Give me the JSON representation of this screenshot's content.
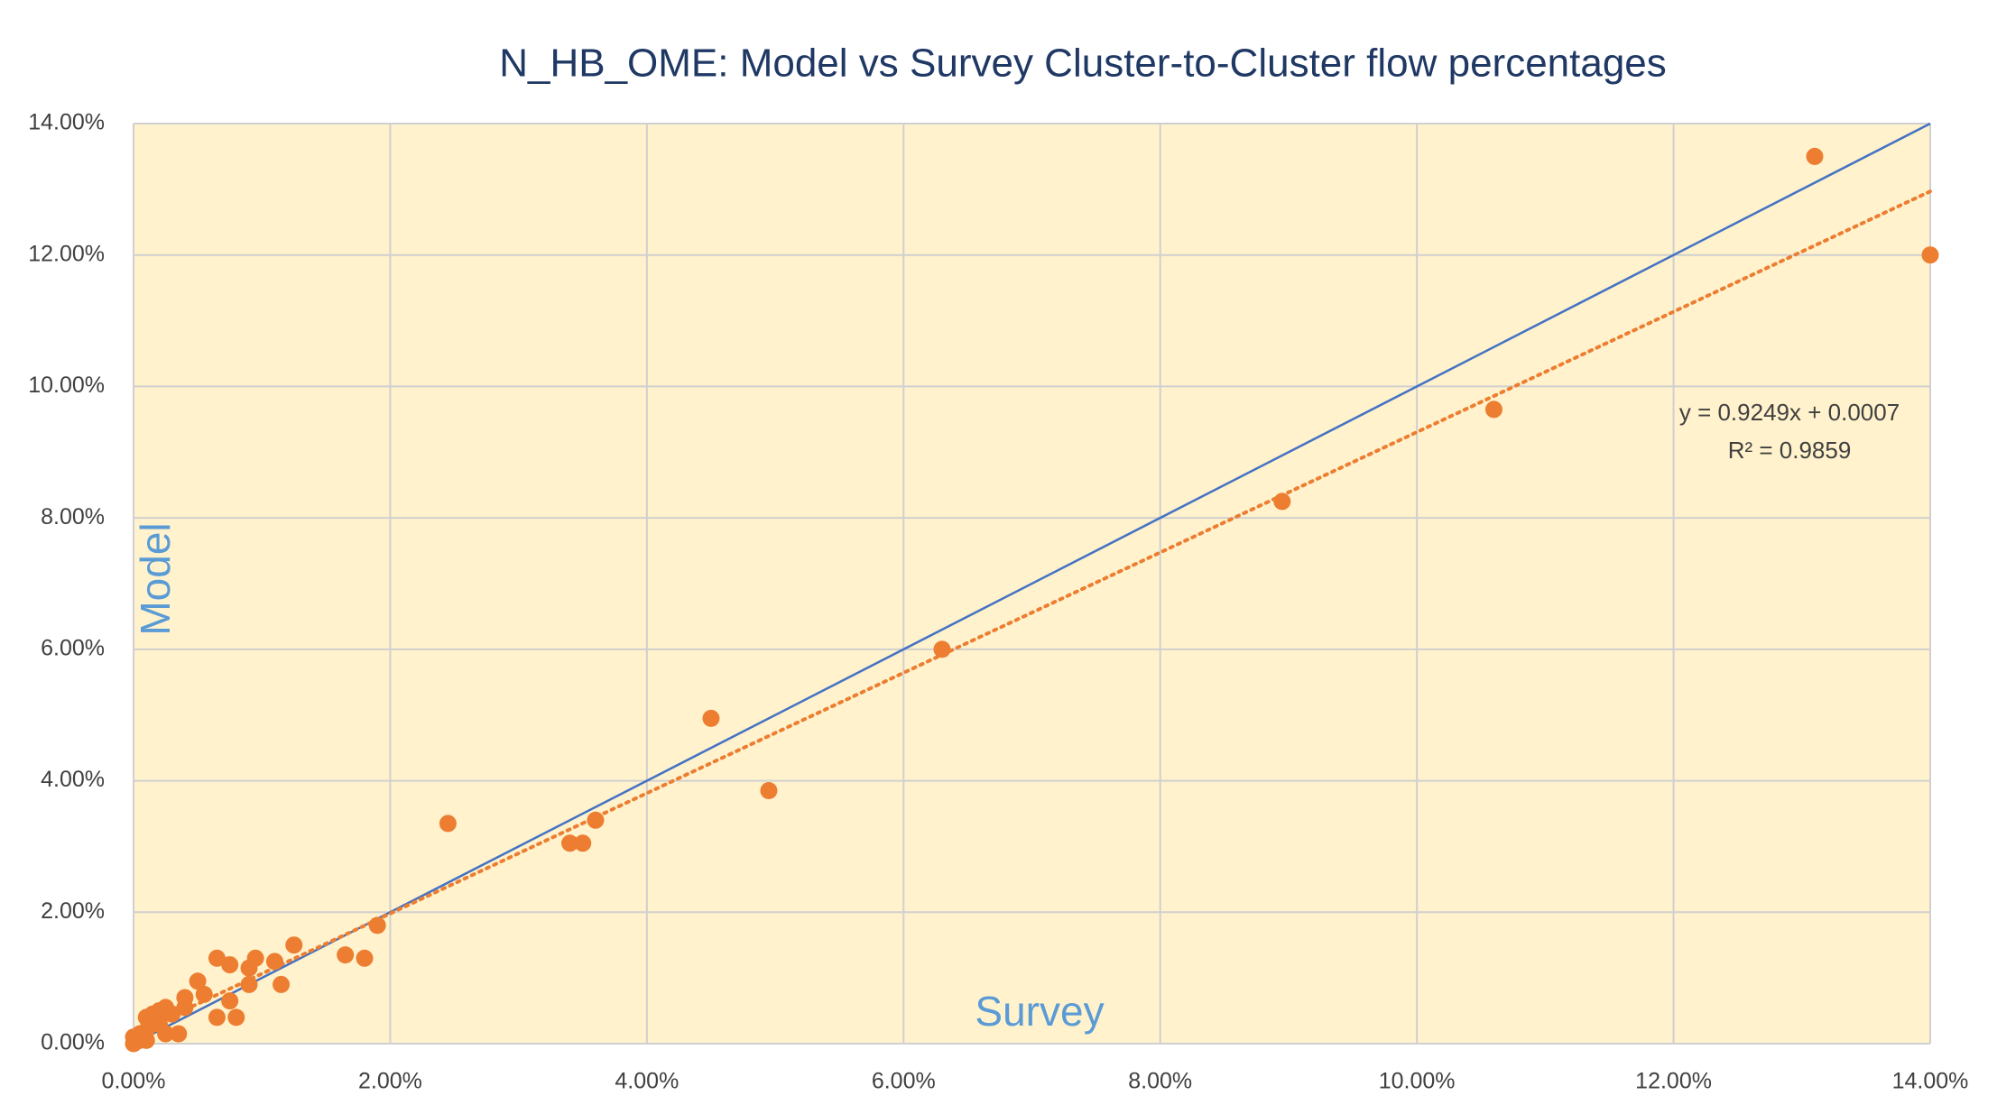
{
  "chart_data": {
    "type": "scatter",
    "title": "N_HB_OME: Model vs Survey Cluster-to-Cluster flow percentages",
    "x_label": "Survey",
    "y_label": "Model",
    "color": "#ed7d31",
    "x": [
      13.1,
      14.0,
      10.6,
      8.95,
      6.3,
      4.5,
      4.95,
      2.45,
      3.6,
      3.4,
      3.5,
      1.9,
      1.8,
      1.65,
      1.25,
      1.1,
      1.15,
      0.95,
      0.9,
      0.9,
      0.75,
      0.65,
      0.75,
      0.8,
      0.65,
      0.55,
      0.5,
      0.4,
      0.4,
      0.35,
      0.3,
      0.25,
      0.2,
      0.15,
      0.15,
      0.1,
      0.1,
      0.05,
      0.05,
      0,
      0,
      0.2,
      0.25,
      0.1
    ],
    "values": [
      13.5,
      12.0,
      9.65,
      8.25,
      6.0,
      4.95,
      3.85,
      3.35,
      3.4,
      3.05,
      3.05,
      1.8,
      1.3,
      1.35,
      1.5,
      1.25,
      0.9,
      1.3,
      1.15,
      0.9,
      1.2,
      1.3,
      0.65,
      0.4,
      0.4,
      0.75,
      0.95,
      0.7,
      0.55,
      0.15,
      0.45,
      0.55,
      0.5,
      0.45,
      0.3,
      0.4,
      0.2,
      0.15,
      0.05,
      0.1,
      0,
      0.3,
      0.15,
      0.05
    ],
    "xlim": [
      0,
      14
    ],
    "ylim": [
      0,
      14
    ],
    "xticks": [
      {
        "value": 0,
        "label": "0.00%"
      },
      {
        "value": 2,
        "label": "2.00%"
      },
      {
        "value": 4,
        "label": "4.00%"
      },
      {
        "value": 6,
        "label": "6.00%"
      },
      {
        "value": 8,
        "label": "8.00%"
      },
      {
        "value": 10,
        "label": "10.00%"
      },
      {
        "value": 12,
        "label": "12.00%"
      },
      {
        "value": 14,
        "label": "14.00%"
      }
    ],
    "yticks": [
      {
        "value": 0,
        "label": "0.00%"
      },
      {
        "value": 2,
        "label": "2.00%"
      },
      {
        "value": 4,
        "label": "4.00%"
      },
      {
        "value": 6,
        "label": "6.00%"
      },
      {
        "value": 8,
        "label": "8.00%"
      },
      {
        "value": 10,
        "label": "10.00%"
      },
      {
        "value": 12,
        "label": "12.00%"
      },
      {
        "value": 14,
        "label": "14.00%"
      }
    ],
    "grid": true,
    "plot_background": "#fff2cc",
    "identity_line": {
      "color": "#4472c4"
    },
    "trendline": {
      "color": "#ed7d31",
      "equation": "y = 0.9249x + 0.0007",
      "r_squared": "R² = 0.9859"
    }
  }
}
